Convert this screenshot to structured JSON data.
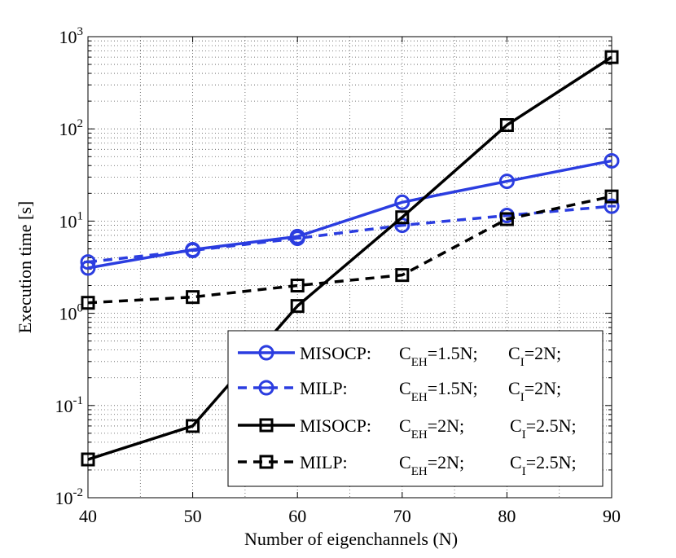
{
  "chart_data": {
    "type": "line",
    "title": "",
    "xlabel": "Number of eigenchannels (N)",
    "ylabel": "Execution time [s]",
    "xlim": [
      40,
      90
    ],
    "ylim": [
      0.01,
      1000
    ],
    "yscale": "log",
    "grid": true,
    "legend_position": "bottom-right",
    "x_ticks": [
      40,
      50,
      60,
      70,
      80,
      90
    ],
    "x_tick_labels": [
      "40",
      "50",
      "60",
      "70",
      "80",
      "90"
    ],
    "y_ticks": [
      {
        "value": 0.01,
        "base": "10",
        "exp": "-2"
      },
      {
        "value": 0.1,
        "base": "10",
        "exp": "-1"
      },
      {
        "value": 1,
        "base": "10",
        "exp": "0"
      },
      {
        "value": 10,
        "base": "10",
        "exp": "1"
      },
      {
        "value": 100,
        "base": "10",
        "exp": "2"
      },
      {
        "value": 1000,
        "base": "10",
        "exp": "3"
      }
    ],
    "x": [
      40,
      50,
      60,
      70,
      80,
      90
    ],
    "series": [
      {
        "name": "MISOCP: C_EH=1.5N; C_I=2N;",
        "legend": {
          "method": "MISOCP:",
          "c": "C",
          "eh_sub": "EH",
          "eh_val": "=1.5N; ",
          "i": "C",
          "i_sub": "I",
          "i_val": "=2N;"
        },
        "values": [
          3.1,
          4.9,
          6.8,
          16,
          27,
          45
        ],
        "color": "#2b3de0",
        "dash": "solid",
        "marker": "circle"
      },
      {
        "name": "MILP: C_EH=1.5N; C_I=2N;",
        "legend": {
          "method": "MILP:",
          "c": "C",
          "eh_sub": "EH",
          "eh_val": "=1.5N; ",
          "i": "C",
          "i_sub": "I",
          "i_val": "=2N;"
        },
        "values": [
          3.6,
          4.8,
          6.5,
          9,
          11.5,
          14.5
        ],
        "color": "#2b3de0",
        "dash": "dashed",
        "marker": "circle-dot"
      },
      {
        "name": "MISOCP: C_EH=2N; C_I=2.5N;",
        "legend": {
          "method": "MISOCP:",
          "c": "C",
          "eh_sub": "EH",
          "eh_val": "=2N;",
          "i": "C",
          "i_sub": "I",
          "i_val": "=2.5N;"
        },
        "values": [
          0.026,
          0.06,
          1.2,
          11,
          110,
          600
        ],
        "color": "#000000",
        "dash": "solid",
        "marker": "square"
      },
      {
        "name": "MILP: C_EH=2N; C_I=2.5N;",
        "legend": {
          "method": "MILP:",
          "c": "C",
          "eh_sub": "EH",
          "eh_val": "=2N;",
          "i": "C",
          "i_sub": "I",
          "i_val": "=2.5N;"
        },
        "values": [
          1.3,
          1.5,
          2.0,
          2.6,
          10.5,
          18.5
        ],
        "color": "#000000",
        "dash": "dashed",
        "marker": "square"
      }
    ]
  }
}
